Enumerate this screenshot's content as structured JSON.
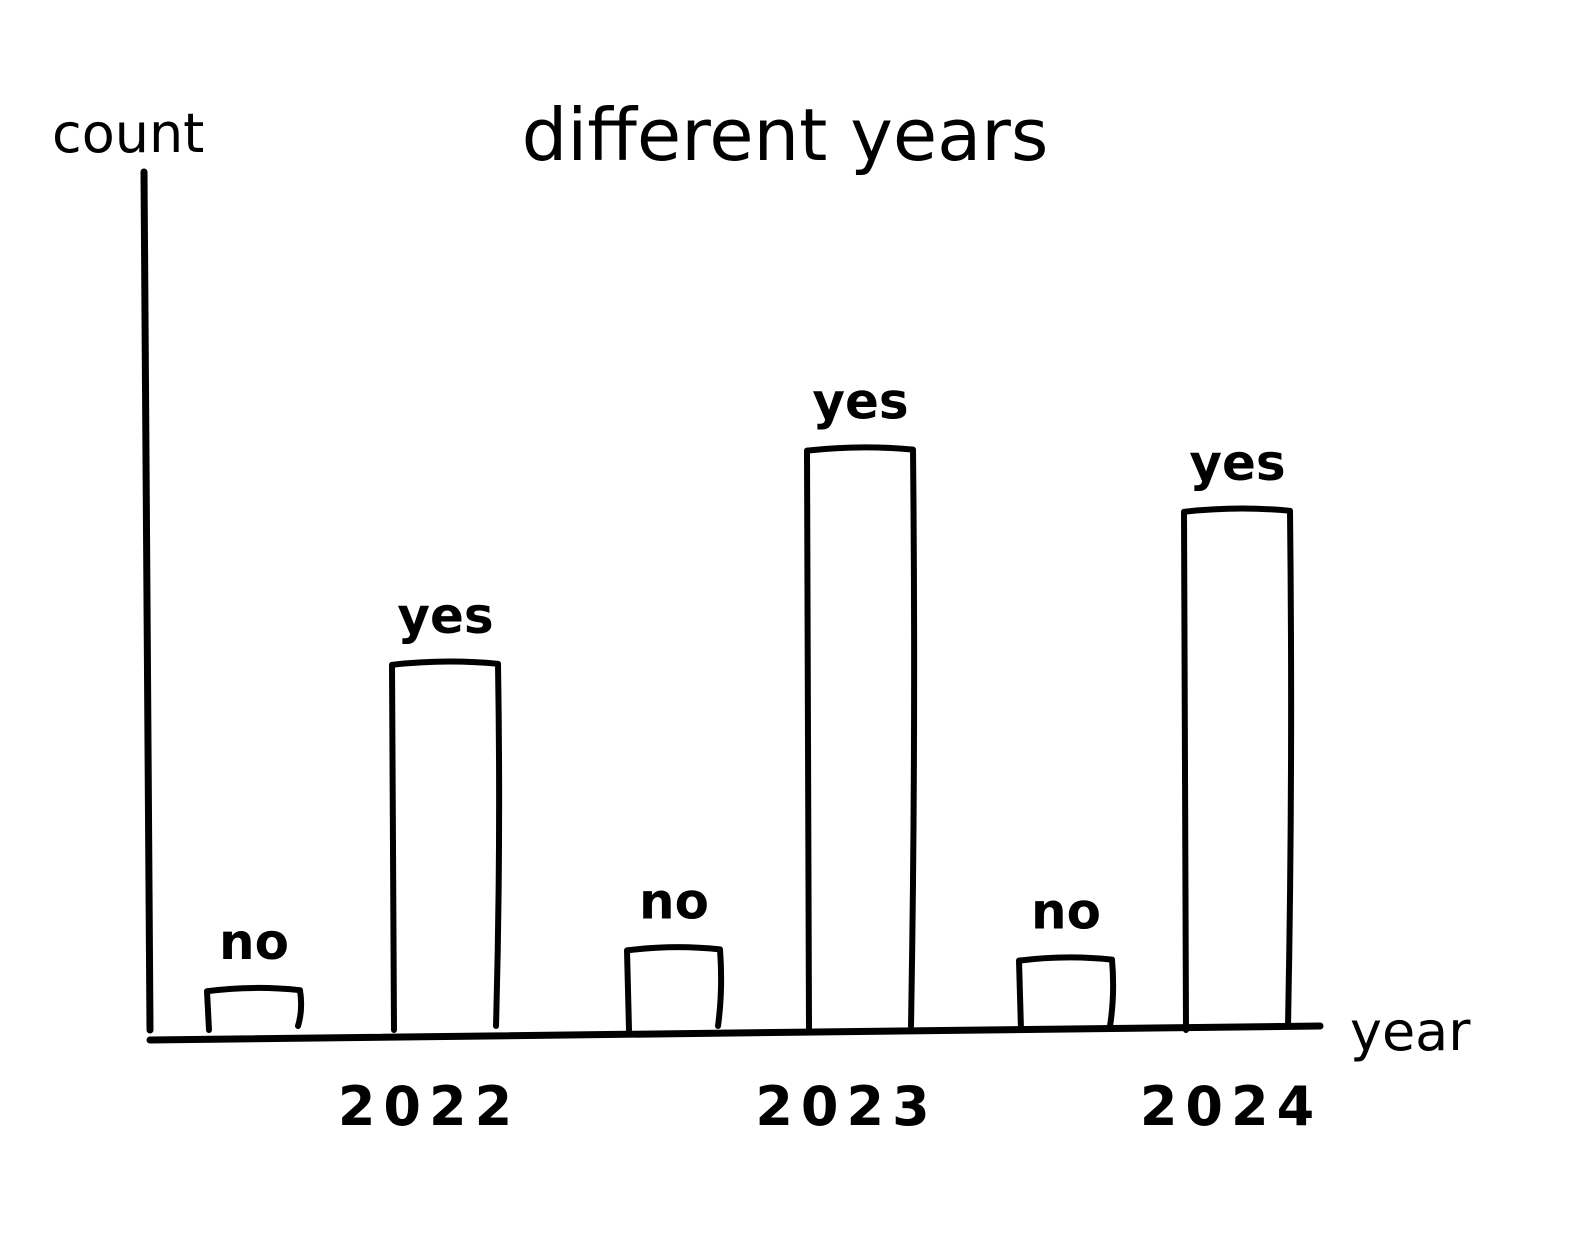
{
  "chart_data": {
    "type": "bar",
    "title": "different years",
    "ylabel": "count",
    "xlabel": "year",
    "categories": [
      "2022",
      "2023",
      "2024"
    ],
    "series": [
      {
        "name": "no",
        "values": [
          4,
          8,
          7
        ]
      },
      {
        "name": "yes",
        "values": [
          36,
          57,
          51
        ]
      }
    ],
    "ylim": [
      0,
      100
    ],
    "grid": false,
    "legend": "none",
    "colors": {
      "ink": "#000000",
      "background": "#ffffff"
    }
  }
}
